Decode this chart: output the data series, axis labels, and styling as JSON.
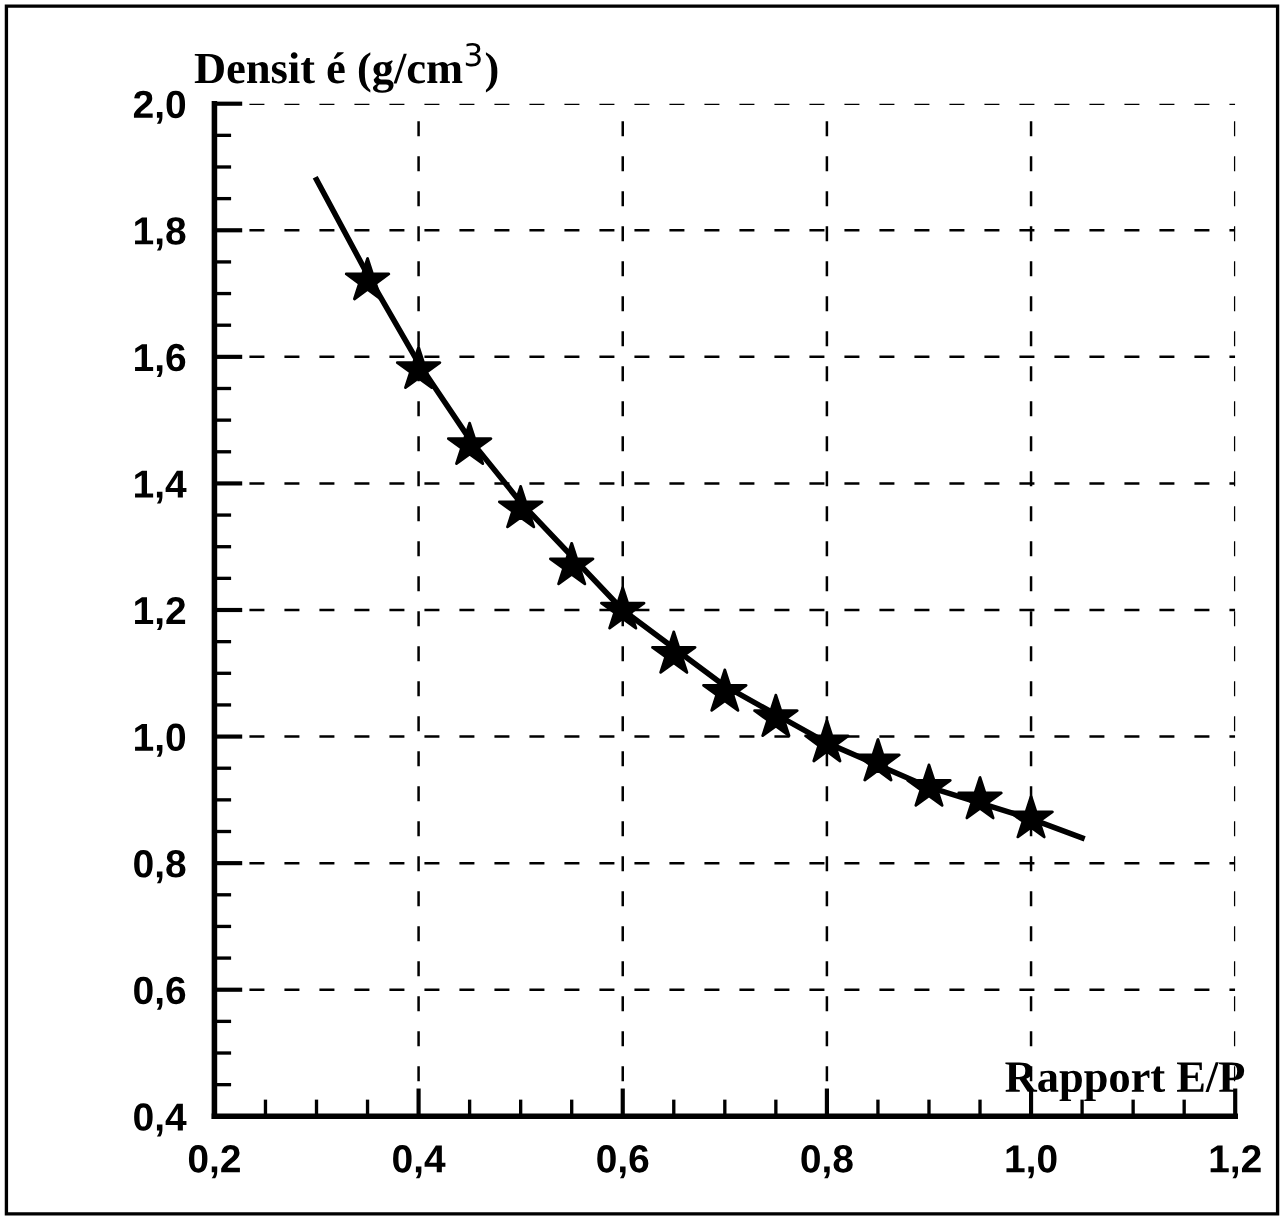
{
  "chart_data": {
    "type": "scatter",
    "xlabel": "Rapport E/P",
    "ylabel": "Densit é (g/cm$^{3}$)",
    "series": [
      {
        "type": "line",
        "color": "#000000",
        "marker": "none",
        "line_style": "solid",
        "x": [
          0.3,
          0.35,
          0.4,
          0.45,
          0.5,
          0.6,
          0.7,
          0.8,
          0.9,
          1.0,
          1.05
        ],
        "values": [
          1.88,
          1.73,
          1.59,
          1.47,
          1.37,
          1.2,
          1.08,
          0.99,
          0.92,
          0.87,
          0.84
        ]
      },
      {
        "color": "#000000",
        "marker": "star",
        "x": [
          0.35,
          0.4,
          0.45,
          0.5,
          0.55,
          0.6,
          0.65,
          0.7,
          0.75,
          0.8,
          0.85,
          0.9,
          0.95,
          1.0
        ],
        "values": [
          1.72,
          1.58,
          1.46,
          1.36,
          1.27,
          1.2,
          1.13,
          1.07,
          1.03,
          0.99,
          0.96,
          0.92,
          0.9,
          0.87
        ]
      }
    ],
    "xlim": [
      0.2,
      1.2
    ],
    "ylim": [
      0.4,
      2.0
    ],
    "xticks": [
      {
        "value": 0.2,
        "label": "0,2"
      },
      {
        "value": 0.4,
        "label": "0,4"
      },
      {
        "value": 0.6,
        "label": "0,6"
      },
      {
        "value": 0.8,
        "label": "0,8"
      },
      {
        "value": 1.0,
        "label": "1,0"
      },
      {
        "value": 1.2,
        "label": "1,2"
      }
    ],
    "yticks": [
      {
        "value": 0.4,
        "label": "0,4"
      },
      {
        "value": 0.6,
        "label": "0,6"
      },
      {
        "value": 0.8,
        "label": "0,8"
      },
      {
        "value": 1.0,
        "label": "1,0"
      },
      {
        "value": 1.2,
        "label": "1,2"
      },
      {
        "value": 1.4,
        "label": "1,4"
      },
      {
        "value": 1.6,
        "label": "1,6"
      },
      {
        "value": 1.8,
        "label": "1,8"
      },
      {
        "value": 2.0,
        "label": "2,0"
      }
    ],
    "grid": true,
    "legend": false
  }
}
